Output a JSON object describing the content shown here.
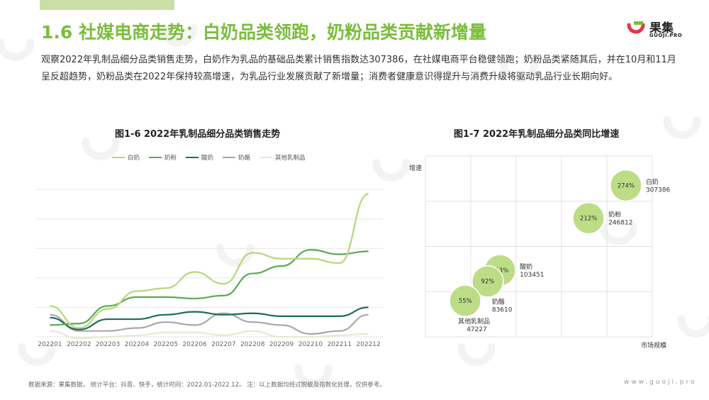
{
  "header": {
    "title": "1.6 社媒电商走势：白奶品类领跑，奶粉品类贡献新增量",
    "logo_text": "果集",
    "logo_subtext": "GUOJI.PRO"
  },
  "intro_text": "观察2022年乳制品细分品类销售走势，白奶作为乳品的基础品类累计销售指数达307386，在社媒电商平台稳健领跑；奶粉品类紧随其后，并在10月和11月呈反超趋势，奶粉品类在2022年保持较高增速，为乳品行业发展贡献了新增量；消费者健康意识得提升与消费升级将驱动乳品行业长期向好。",
  "footer": {
    "source": "数据来源：果集数据， 统计平台：抖音、快手，统计时间：2022.01-2022.12。 注：以上数据均经过脱敏及指数化处理，仅供参考。",
    "site": "www.guoji.pro"
  },
  "colors": {
    "brand_green": "#7bbd3c",
    "logo_red": "#e5344a"
  },
  "chart_data": [
    {
      "type": "line",
      "title": "图1-6 2022年乳制品细分品类销售走势",
      "xlabel": "",
      "ylabel": "",
      "categories": [
        "202201",
        "202202",
        "202203",
        "202204",
        "202205",
        "202206",
        "202207",
        "202208",
        "202209",
        "202210",
        "202211",
        "202212"
      ],
      "ylim": [
        0,
        100
      ],
      "grid": true,
      "legend": "top",
      "series": [
        {
          "name": "白奶",
          "color": "#b5d77a",
          "values": [
            21,
            6,
            19,
            31,
            33,
            44,
            36,
            57,
            53,
            53,
            50,
            97
          ]
        },
        {
          "name": "奶粉",
          "color": "#5aaa55",
          "values": [
            8,
            9,
            21,
            27,
            27,
            26,
            28,
            43,
            48,
            59,
            56,
            58
          ]
        },
        {
          "name": "酸奶",
          "color": "#1e6b5c",
          "values": [
            13,
            5,
            12,
            12,
            15,
            17,
            15,
            16,
            14,
            14,
            14,
            20
          ]
        },
        {
          "name": "奶酪",
          "color": "#a8a8a8",
          "values": [
            15,
            4,
            4,
            6,
            10,
            8,
            16,
            10,
            8,
            2,
            4,
            15
          ]
        },
        {
          "name": "其他乳制品",
          "color": "#e7e8d0",
          "values": [
            4,
            -1,
            0,
            1,
            3,
            3,
            1,
            4,
            0,
            0,
            1,
            2
          ]
        }
      ]
    },
    {
      "type": "scatter",
      "title": "图1-7 2022年乳制品细分品类同比增速",
      "xlabel": "市场规模",
      "ylabel": "增速",
      "grid": true,
      "legend": "none",
      "points": [
        {
          "name": "白奶",
          "x": 307386,
          "y": 274,
          "label": "274%"
        },
        {
          "name": "奶粉",
          "x": 246812,
          "y": 212,
          "label": "212%"
        },
        {
          "name": "酸奶",
          "x": 103451,
          "y": 113,
          "label": "113%"
        },
        {
          "name": "奶酪",
          "x": 83610,
          "y": 92,
          "label": "92%"
        },
        {
          "name": "其他乳制品",
          "x": 47227,
          "y": 55,
          "label": "55%"
        }
      ]
    }
  ]
}
